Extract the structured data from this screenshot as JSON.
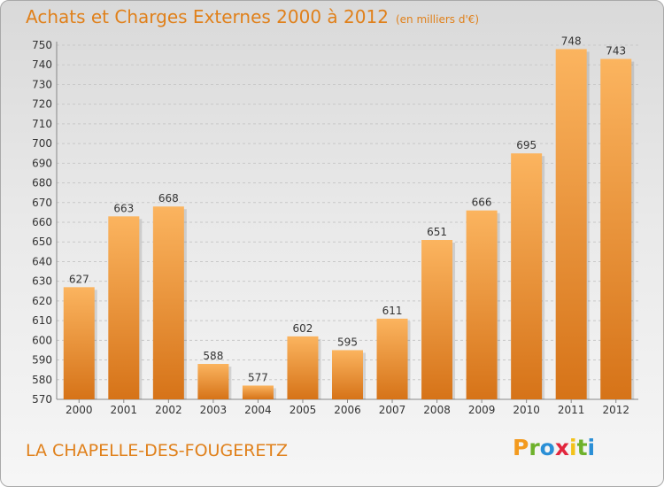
{
  "chart_data": {
    "type": "bar",
    "title": "Achats et Charges Externes 2000 à 2012",
    "unit": "(en milliers d'€)",
    "categories": [
      "2000",
      "2001",
      "2002",
      "2003",
      "2004",
      "2005",
      "2006",
      "2007",
      "2008",
      "2009",
      "2010",
      "2011",
      "2012"
    ],
    "values": [
      627,
      663,
      668,
      588,
      577,
      602,
      595,
      611,
      651,
      666,
      695,
      748,
      743
    ],
    "ylim": [
      570,
      750
    ],
    "yticks": [
      570,
      580,
      590,
      600,
      610,
      620,
      630,
      640,
      650,
      660,
      670,
      680,
      690,
      700,
      710,
      720,
      730,
      740,
      750
    ],
    "grid": true,
    "xlabel": "",
    "ylabel": ""
  },
  "commune": "LA CHAPELLE-DES-FOUGERETZ",
  "logo": {
    "letters": [
      "P",
      "r",
      "o",
      "x",
      "i",
      "t",
      "i"
    ],
    "colors": [
      "#f39a1e",
      "#6eb12b",
      "#2a8fd6",
      "#e2263d",
      "#f3c21a",
      "#6eb12b",
      "#2a8fd6"
    ]
  },
  "colors": {
    "bar_light": "#fbb45f",
    "bar_dark": "#d67318",
    "title": "#e0801a"
  }
}
